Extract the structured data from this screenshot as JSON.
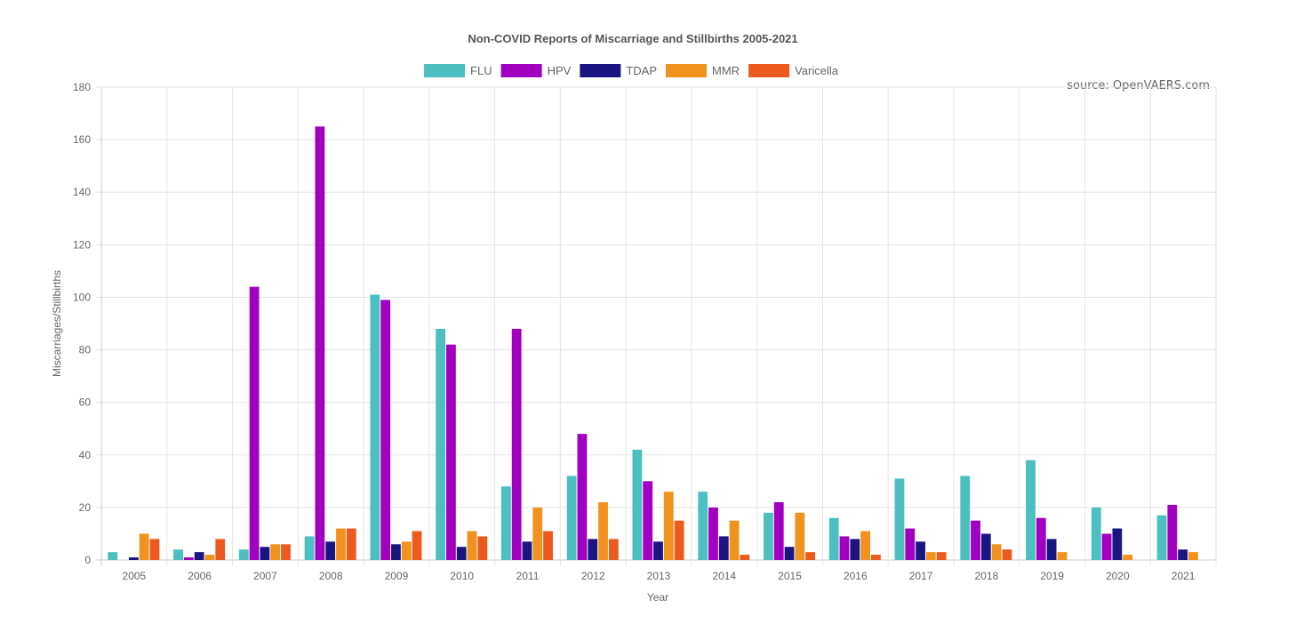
{
  "chart_data": {
    "type": "bar",
    "title": "Non-COVID Reports of Miscarriage and Stillbirths 2005-2021",
    "xlabel": "Year",
    "ylabel": "Miscarriages/Stillbirths",
    "ylim": [
      0,
      180
    ],
    "yticks": [
      0,
      20,
      40,
      60,
      80,
      100,
      120,
      140,
      160,
      180
    ],
    "grid": true,
    "legend_position": "top",
    "annotation": "source: OpenVAERS.com",
    "categories": [
      "2005",
      "2006",
      "2007",
      "2008",
      "2009",
      "2010",
      "2011",
      "2012",
      "2013",
      "2014",
      "2015",
      "2016",
      "2017",
      "2018",
      "2019",
      "2020",
      "2021"
    ],
    "series": [
      {
        "name": "FLU",
        "color": "#4cbfc0",
        "values": [
          3,
          4,
          4,
          9,
          101,
          88,
          28,
          32,
          42,
          26,
          18,
          16,
          31,
          32,
          38,
          20,
          17
        ]
      },
      {
        "name": "HPV",
        "color": "#a100c0",
        "values": [
          0,
          1,
          104,
          165,
          99,
          82,
          88,
          48,
          30,
          20,
          22,
          9,
          12,
          15,
          16,
          10,
          21
        ]
      },
      {
        "name": "TDAP",
        "color": "#1b1582",
        "values": [
          1,
          3,
          5,
          7,
          6,
          5,
          7,
          8,
          7,
          9,
          5,
          8,
          7,
          10,
          8,
          12,
          4
        ]
      },
      {
        "name": "MMR",
        "color": "#f0921d",
        "values": [
          10,
          2,
          6,
          12,
          7,
          11,
          20,
          22,
          26,
          15,
          18,
          11,
          3,
          6,
          3,
          2,
          3
        ]
      },
      {
        "name": "Varicella",
        "color": "#ec5a1e",
        "values": [
          8,
          8,
          6,
          12,
          11,
          9,
          11,
          8,
          15,
          2,
          3,
          2,
          3,
          4,
          0,
          0,
          0
        ]
      }
    ]
  }
}
